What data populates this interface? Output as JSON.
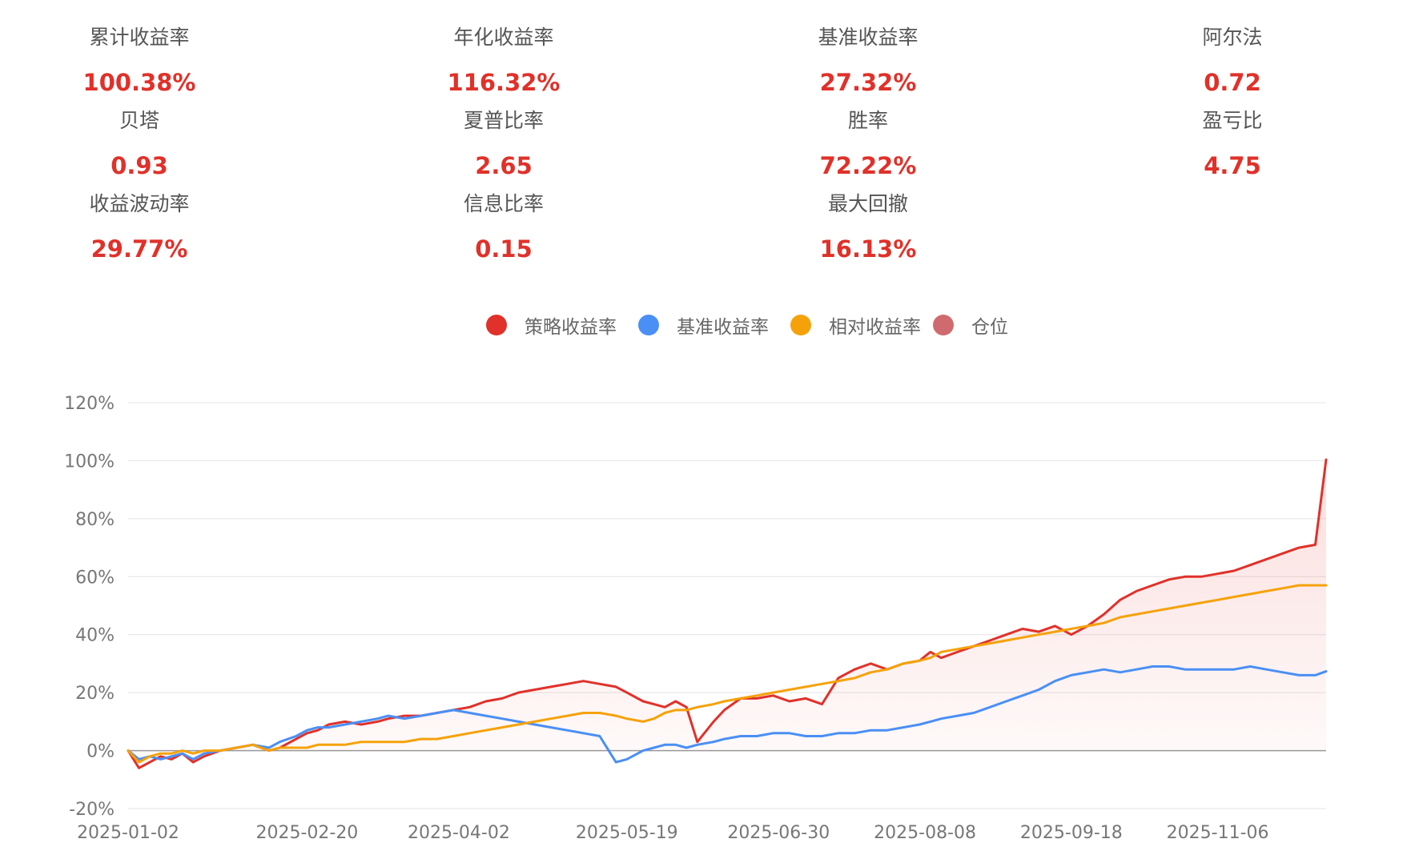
{
  "stats": [
    {
      "label": "累计收益率",
      "value": "100.38%"
    },
    {
      "label": "年化收益率",
      "value": "116.32%"
    },
    {
      "label": "基准收益率",
      "value": "27.32%"
    },
    {
      "label": "阿尔法",
      "value": "0.72"
    },
    {
      "label": "贝塔",
      "value": "0.93"
    },
    {
      "label": "夏普比率",
      "value": "2.65"
    },
    {
      "label": "胜率",
      "value": "72.22%"
    },
    {
      "label": "盈亏比",
      "value": "4.75"
    },
    {
      "label": "收益波动率",
      "value": "29.77%"
    },
    {
      "label": "信息比率",
      "value": "0.15"
    },
    {
      "label": "最大回撤",
      "value": "16.13%"
    }
  ],
  "colors": {
    "strategy": "#e0312a",
    "benchmark": "#4a8ff5",
    "relative": "#f5a20a",
    "position": "#cf6b6e",
    "value_text": "#e0312a"
  },
  "chart_data": {
    "type": "line",
    "legend": [
      "策略收益率",
      "基准收益率",
      "相对收益率",
      "仓位"
    ],
    "legend_placement": "top-center",
    "y_ticks": [
      "-20%",
      "0%",
      "20%",
      "40%",
      "60%",
      "80%",
      "100%",
      "120%"
    ],
    "ylim": [
      -20,
      120
    ],
    "x_ticks": [
      "2025-01-02",
      "2025-02-20",
      "2025-04-02",
      "2025-05-19",
      "2025-06-30",
      "2025-08-08",
      "2025-09-18",
      "2025-11-06"
    ],
    "x_tick_index": [
      0,
      33,
      61,
      92,
      120,
      147,
      174,
      201
    ],
    "x_count": 222,
    "grid": true,
    "series": [
      {
        "name": "策略收益率",
        "area_fill": true,
        "points": [
          [
            0,
            0
          ],
          [
            2,
            -6
          ],
          [
            4,
            -4
          ],
          [
            6,
            -2
          ],
          [
            8,
            -3
          ],
          [
            10,
            -1
          ],
          [
            12,
            -4
          ],
          [
            14,
            -2
          ],
          [
            17,
            0
          ],
          [
            20,
            1
          ],
          [
            23,
            2
          ],
          [
            26,
            0
          ],
          [
            28,
            1
          ],
          [
            31,
            4
          ],
          [
            33,
            6
          ],
          [
            35,
            7
          ],
          [
            37,
            9
          ],
          [
            40,
            10
          ],
          [
            43,
            9
          ],
          [
            46,
            10
          ],
          [
            48,
            11
          ],
          [
            51,
            12
          ],
          [
            54,
            12
          ],
          [
            57,
            13
          ],
          [
            60,
            14
          ],
          [
            63,
            15
          ],
          [
            66,
            17
          ],
          [
            69,
            18
          ],
          [
            72,
            20
          ],
          [
            75,
            21
          ],
          [
            78,
            22
          ],
          [
            81,
            23
          ],
          [
            84,
            24
          ],
          [
            87,
            23
          ],
          [
            90,
            22
          ],
          [
            92,
            20
          ],
          [
            95,
            17
          ],
          [
            97,
            16
          ],
          [
            99,
            15
          ],
          [
            101,
            17
          ],
          [
            103,
            15
          ],
          [
            105,
            3
          ],
          [
            108,
            10
          ],
          [
            110,
            14
          ],
          [
            113,
            18
          ],
          [
            116,
            18
          ],
          [
            119,
            19
          ],
          [
            122,
            17
          ],
          [
            125,
            18
          ],
          [
            128,
            16
          ],
          [
            131,
            25
          ],
          [
            134,
            28
          ],
          [
            137,
            30
          ],
          [
            140,
            28
          ],
          [
            143,
            30
          ],
          [
            146,
            31
          ],
          [
            148,
            34
          ],
          [
            150,
            32
          ],
          [
            153,
            34
          ],
          [
            156,
            36
          ],
          [
            159,
            38
          ],
          [
            162,
            40
          ],
          [
            165,
            42
          ],
          [
            168,
            41
          ],
          [
            171,
            43
          ],
          [
            174,
            40
          ],
          [
            177,
            43
          ],
          [
            180,
            47
          ],
          [
            183,
            52
          ],
          [
            186,
            55
          ],
          [
            189,
            57
          ],
          [
            192,
            59
          ],
          [
            195,
            60
          ],
          [
            198,
            60
          ],
          [
            201,
            61
          ],
          [
            204,
            62
          ],
          [
            207,
            64
          ],
          [
            210,
            66
          ],
          [
            213,
            68
          ],
          [
            216,
            70
          ],
          [
            219,
            71
          ],
          [
            221,
            100.38
          ]
        ]
      },
      {
        "name": "基准收益率",
        "area_fill": false,
        "points": [
          [
            0,
            0
          ],
          [
            2,
            -3
          ],
          [
            4,
            -2
          ],
          [
            6,
            -3
          ],
          [
            8,
            -2
          ],
          [
            10,
            -1
          ],
          [
            12,
            -3
          ],
          [
            14,
            -1
          ],
          [
            17,
            0
          ],
          [
            20,
            1
          ],
          [
            23,
            2
          ],
          [
            26,
            1
          ],
          [
            28,
            3
          ],
          [
            31,
            5
          ],
          [
            33,
            7
          ],
          [
            35,
            8
          ],
          [
            37,
            8
          ],
          [
            40,
            9
          ],
          [
            43,
            10
          ],
          [
            46,
            11
          ],
          [
            48,
            12
          ],
          [
            51,
            11
          ],
          [
            54,
            12
          ],
          [
            57,
            13
          ],
          [
            60,
            14
          ],
          [
            63,
            13
          ],
          [
            66,
            12
          ],
          [
            69,
            11
          ],
          [
            72,
            10
          ],
          [
            75,
            9
          ],
          [
            78,
            8
          ],
          [
            81,
            7
          ],
          [
            84,
            6
          ],
          [
            87,
            5
          ],
          [
            90,
            -4
          ],
          [
            92,
            -3
          ],
          [
            95,
            0
          ],
          [
            97,
            1
          ],
          [
            99,
            2
          ],
          [
            101,
            2
          ],
          [
            103,
            1
          ],
          [
            105,
            2
          ],
          [
            108,
            3
          ],
          [
            110,
            4
          ],
          [
            113,
            5
          ],
          [
            116,
            5
          ],
          [
            119,
            6
          ],
          [
            122,
            6
          ],
          [
            125,
            5
          ],
          [
            128,
            5
          ],
          [
            131,
            6
          ],
          [
            134,
            6
          ],
          [
            137,
            7
          ],
          [
            140,
            7
          ],
          [
            143,
            8
          ],
          [
            146,
            9
          ],
          [
            148,
            10
          ],
          [
            150,
            11
          ],
          [
            153,
            12
          ],
          [
            156,
            13
          ],
          [
            159,
            15
          ],
          [
            162,
            17
          ],
          [
            165,
            19
          ],
          [
            168,
            21
          ],
          [
            171,
            24
          ],
          [
            174,
            26
          ],
          [
            177,
            27
          ],
          [
            180,
            28
          ],
          [
            183,
            27
          ],
          [
            186,
            28
          ],
          [
            189,
            29
          ],
          [
            192,
            29
          ],
          [
            195,
            28
          ],
          [
            198,
            28
          ],
          [
            201,
            28
          ],
          [
            204,
            28
          ],
          [
            207,
            29
          ],
          [
            210,
            28
          ],
          [
            213,
            27
          ],
          [
            216,
            26
          ],
          [
            219,
            26
          ],
          [
            221,
            27.32
          ]
        ]
      },
      {
        "name": "相对收益率",
        "area_fill": false,
        "points": [
          [
            0,
            0
          ],
          [
            2,
            -4
          ],
          [
            4,
            -2
          ],
          [
            6,
            -1
          ],
          [
            8,
            -1
          ],
          [
            10,
            0
          ],
          [
            12,
            -1
          ],
          [
            14,
            0
          ],
          [
            17,
            0
          ],
          [
            20,
            1
          ],
          [
            23,
            2
          ],
          [
            26,
            0
          ],
          [
            28,
            1
          ],
          [
            31,
            1
          ],
          [
            33,
            1
          ],
          [
            35,
            2
          ],
          [
            37,
            2
          ],
          [
            40,
            2
          ],
          [
            43,
            3
          ],
          [
            46,
            3
          ],
          [
            48,
            3
          ],
          [
            51,
            3
          ],
          [
            54,
            4
          ],
          [
            57,
            4
          ],
          [
            60,
            5
          ],
          [
            63,
            6
          ],
          [
            66,
            7
          ],
          [
            69,
            8
          ],
          [
            72,
            9
          ],
          [
            75,
            10
          ],
          [
            78,
            11
          ],
          [
            81,
            12
          ],
          [
            84,
            13
          ],
          [
            87,
            13
          ],
          [
            90,
            12
          ],
          [
            92,
            11
          ],
          [
            95,
            10
          ],
          [
            97,
            11
          ],
          [
            99,
            13
          ],
          [
            101,
            14
          ],
          [
            103,
            14
          ],
          [
            105,
            15
          ],
          [
            108,
            16
          ],
          [
            110,
            17
          ],
          [
            113,
            18
          ],
          [
            116,
            19
          ],
          [
            119,
            20
          ],
          [
            122,
            21
          ],
          [
            125,
            22
          ],
          [
            128,
            23
          ],
          [
            131,
            24
          ],
          [
            134,
            25
          ],
          [
            137,
            27
          ],
          [
            140,
            28
          ],
          [
            143,
            30
          ],
          [
            146,
            31
          ],
          [
            148,
            32
          ],
          [
            150,
            34
          ],
          [
            153,
            35
          ],
          [
            156,
            36
          ],
          [
            159,
            37
          ],
          [
            162,
            38
          ],
          [
            165,
            39
          ],
          [
            168,
            40
          ],
          [
            171,
            41
          ],
          [
            174,
            42
          ],
          [
            177,
            43
          ],
          [
            180,
            44
          ],
          [
            183,
            46
          ],
          [
            186,
            47
          ],
          [
            189,
            48
          ],
          [
            192,
            49
          ],
          [
            195,
            50
          ],
          [
            198,
            51
          ],
          [
            201,
            52
          ],
          [
            204,
            53
          ],
          [
            207,
            54
          ],
          [
            210,
            55
          ],
          [
            213,
            56
          ],
          [
            216,
            57
          ],
          [
            219,
            57
          ],
          [
            221,
            57
          ]
        ]
      }
    ]
  }
}
